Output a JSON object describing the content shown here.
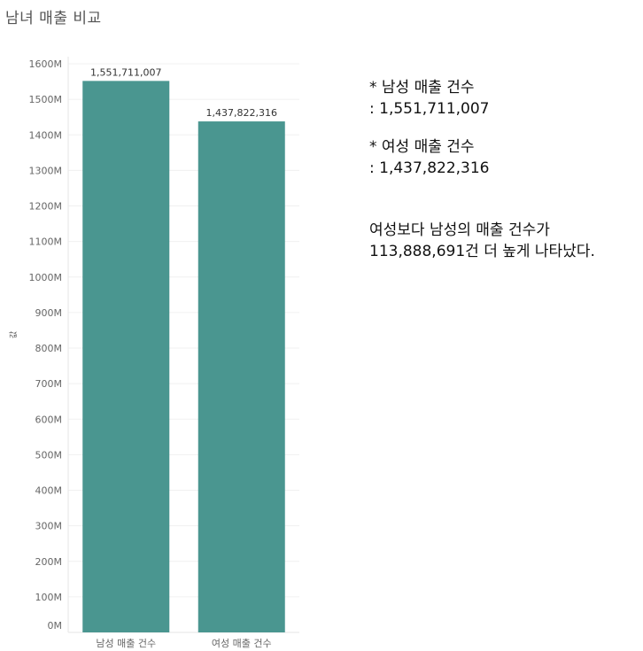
{
  "title": "남녀 매출 비교",
  "chart_data": {
    "type": "bar",
    "title": "남녀 매출 비교",
    "xlabel": "",
    "ylabel": "값",
    "categories": [
      "남성 매출 건수",
      "여성 매출 건수"
    ],
    "values": [
      1551711007,
      1437822316
    ],
    "data_labels": [
      "1,551,711,007",
      "1,437,822,316"
    ],
    "ylim": [
      0,
      1600000000
    ],
    "yticks": [
      0,
      100000000,
      200000000,
      300000000,
      400000000,
      500000000,
      600000000,
      700000000,
      800000000,
      900000000,
      1000000000,
      1100000000,
      1200000000,
      1300000000,
      1400000000,
      1500000000,
      1600000000
    ],
    "ytick_labels": [
      "0M",
      "100M",
      "200M",
      "300M",
      "400M",
      "500M",
      "600M",
      "700M",
      "800M",
      "900M",
      "1000M",
      "1100M",
      "1200M",
      "1300M",
      "1400M",
      "1500M",
      "1600M"
    ],
    "grid": true,
    "bar_color": "#4a9690"
  },
  "notes": {
    "male_heading": "* 남성 매출 건수",
    "male_value": ": 1,551,711,007",
    "female_heading": "* 여성 매출 건수",
    "female_value": ": 1,437,822,316",
    "summary_line1": "여성보다 남성의 매출 건수가",
    "summary_line2": "113,888,691건 더 높게 나타났다."
  }
}
